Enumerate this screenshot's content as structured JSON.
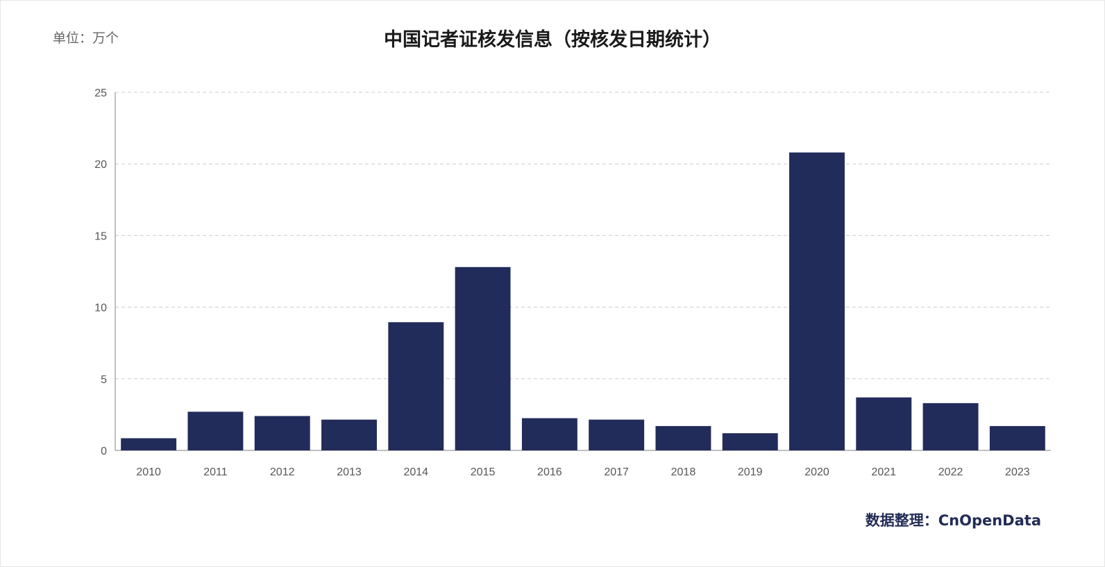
{
  "header": {
    "unit_label": "单位：万个",
    "title": "中国记者证核发信息（按核发日期统计）"
  },
  "footer": {
    "source": "数据整理：CnOpenData"
  },
  "colors": {
    "bar": "#222c5b",
    "grid": "#cccccc",
    "axis": "#aaaaaa",
    "source_text": "#222c56"
  },
  "chart_data": {
    "type": "bar",
    "title": "中国记者证核发信息（按核发日期统计）",
    "xlabel": "",
    "ylabel": "",
    "categories": [
      "2010",
      "2011",
      "2012",
      "2013",
      "2014",
      "2015",
      "2016",
      "2017",
      "2018",
      "2019",
      "2020",
      "2021",
      "2022",
      "2023"
    ],
    "values": [
      0.85,
      2.7,
      2.4,
      2.15,
      8.95,
      12.8,
      2.25,
      2.15,
      1.7,
      1.2,
      20.8,
      3.7,
      3.3,
      1.7
    ],
    "ylim": [
      0,
      25
    ],
    "yticks": [
      0,
      5,
      10,
      15,
      20,
      25
    ],
    "grid": true,
    "grid_style": "dashed",
    "legend": "none"
  }
}
